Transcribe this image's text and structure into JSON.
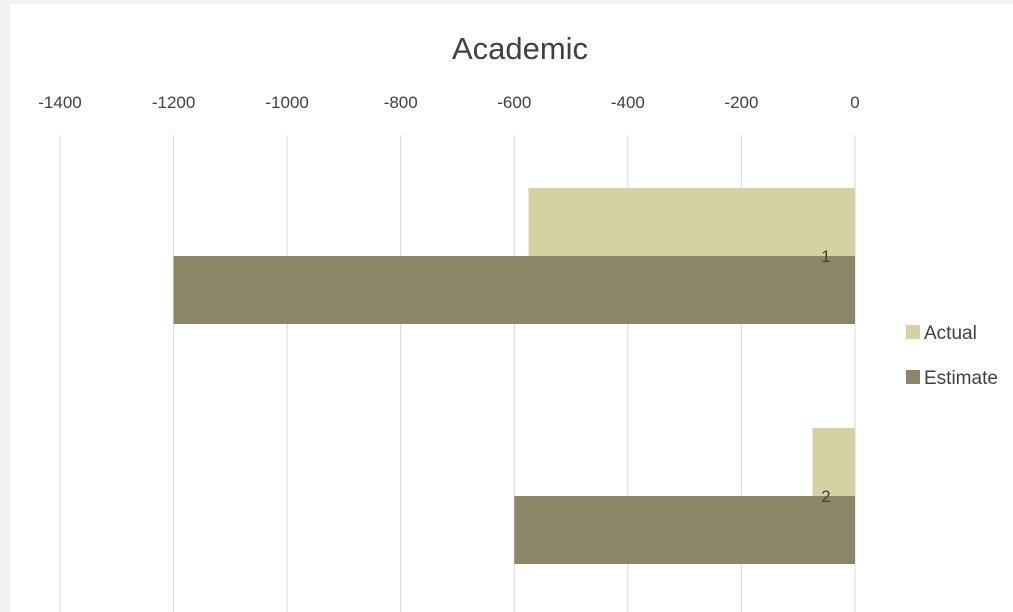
{
  "chart_data": {
    "type": "bar",
    "orientation": "horizontal",
    "title": "Academic",
    "xlabel": "",
    "ylabel": "",
    "xlim": [
      -1400,
      0
    ],
    "x_ticks": [
      -1400,
      -1200,
      -1000,
      -800,
      -600,
      -400,
      -200,
      0
    ],
    "x_tick_labels": [
      "-1400",
      "-1200",
      "-1000",
      "-800",
      "-600",
      "-400",
      "-200",
      "0"
    ],
    "axis_position": "top",
    "grid": true,
    "categories": [
      "1",
      "2"
    ],
    "series": [
      {
        "name": "Actual",
        "values": [
          -575,
          -75
        ],
        "color": "#d6d1a3"
      },
      {
        "name": "Estimate",
        "values": [
          -1200,
          -600
        ],
        "color": "#8b8668"
      }
    ],
    "legend": {
      "placement": "right"
    }
  }
}
